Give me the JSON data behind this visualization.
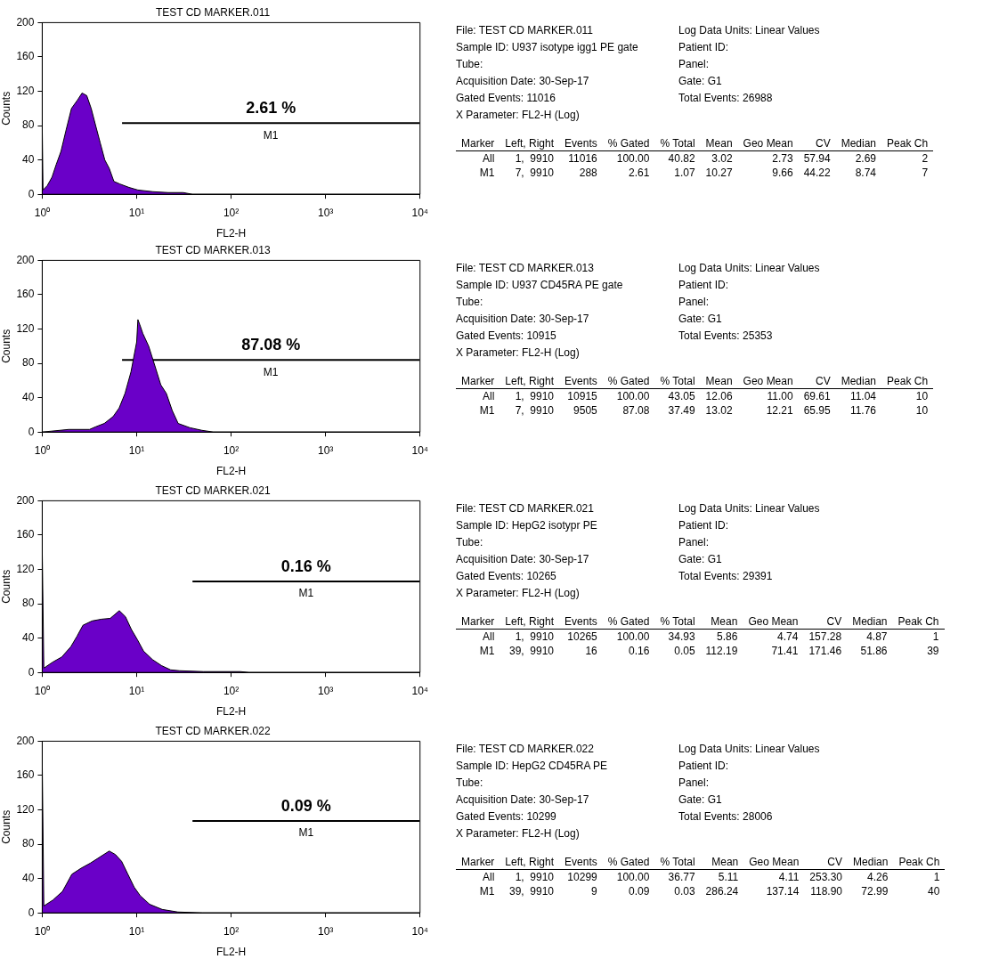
{
  "chart_data": [
    {
      "type": "area",
      "title": "TEST CD MARKER.011",
      "xlabel": "FL2-H",
      "ylabel": "Counts",
      "log": "x",
      "xlim": [
        1,
        10000
      ],
      "xticks": [
        {
          "value": 1,
          "label": "10⁰"
        },
        {
          "value": 10,
          "label": "10¹"
        },
        {
          "value": 100,
          "label": "10²"
        },
        {
          "value": 1000,
          "label": "10³"
        },
        {
          "value": 10000,
          "label": "10⁴"
        }
      ],
      "ylim": [
        0,
        200
      ],
      "yticks": [
        0,
        40,
        80,
        120,
        160,
        200
      ],
      "series": [
        {
          "type": "area",
          "color": "#6a00c8",
          "x": [
            1,
            1.02,
            1.13,
            1.27,
            1.41,
            1.58,
            1.79,
            2.04,
            2.37,
            2.64,
            2.96,
            3.3,
            3.68,
            4.11,
            4.6,
            5.13,
            5.74,
            6.64,
            8.3,
            10.3,
            14.9,
            21.6,
            31,
            39,
            10000
          ],
          "values": [
            80,
            5,
            10,
            20,
            35,
            50,
            75,
            100,
            110,
            118,
            115,
            100,
            80,
            60,
            40,
            30,
            15,
            12,
            8,
            5,
            3,
            2,
            2,
            0,
            0
          ]
        },
        {
          "type": "line",
          "name": "M1",
          "color": "#000000",
          "x": [
            7,
            9910
          ],
          "values": [
            83,
            83
          ]
        }
      ],
      "annotations": [
        "2.61 %"
      ]
    },
    {
      "type": "other",
      "annotations": [
        "File: TEST CD MARKER.011",
        "Sample ID: U937 isotype igg1 PE gate",
        "Tube:",
        "Acquisition Date: 30-Sep-17",
        "Gated Events: 11016",
        "X Parameter: FL2-H (Log)",
        "Log Data Units: Linear Values",
        "Patient ID:",
        "Panel:",
        "Gate: G1",
        "Total Events: 26988"
      ],
      "categories": [
        "Marker",
        "Left, Right",
        "Events",
        "% Gated",
        "% Total",
        "Mean",
        "Geo Mean",
        "CV",
        "Median",
        "Peak Ch"
      ],
      "cell_labels": [
        [
          "All",
          "1,  9910",
          "11016",
          "100.00",
          "40.82",
          "3.02",
          "2.73",
          "57.94",
          "2.69",
          "2"
        ],
        [
          "M1",
          "7,  9910",
          "288",
          "2.61",
          "1.07",
          "10.27",
          "9.66",
          "44.22",
          "8.74",
          "7"
        ]
      ]
    },
    {
      "type": "area",
      "title": "TEST CD MARKER.013",
      "xlabel": "FL2-H",
      "ylabel": "Counts",
      "log": "x",
      "xlim": [
        1,
        10000
      ],
      "xticks": [
        {
          "value": 1,
          "label": "10⁰"
        },
        {
          "value": 10,
          "label": "10¹"
        },
        {
          "value": 100,
          "label": "10²"
        },
        {
          "value": 1000,
          "label": "10³"
        },
        {
          "value": 10000,
          "label": "10⁴"
        }
      ],
      "ylim": [
        0,
        200
      ],
      "yticks": [
        0,
        40,
        80,
        120,
        160,
        200
      ],
      "series": [
        {
          "type": "area",
          "color": "#6a00c8",
          "x": [
            1,
            1.24,
            1.91,
            3.17,
            3.66,
            4.54,
            5.63,
            6.52,
            7.53,
            8.7,
            10,
            10.3,
            10.8,
            11.6,
            13.4,
            15.5,
            18,
            20.6,
            23.8,
            27.5,
            36.7,
            49,
            65,
            10000
          ],
          "values": [
            0,
            1,
            3,
            3,
            6,
            10,
            18,
            28,
            45,
            70,
            105,
            131,
            125,
            115,
            100,
            78,
            55,
            45,
            25,
            10,
            5,
            2,
            0,
            0
          ]
        },
        {
          "type": "line",
          "name": "M1",
          "color": "#000000",
          "x": [
            7,
            9910
          ],
          "values": [
            84,
            84
          ]
        }
      ],
      "annotations": [
        "87.08 %"
      ]
    },
    {
      "type": "other",
      "annotations": [
        "File: TEST CD MARKER.013",
        "Sample ID: U937 CD45RA PE gate",
        "Tube:",
        "Acquisition Date: 30-Sep-17",
        "Gated Events: 10915",
        "X Parameter: FL2-H (Log)",
        "Log Data Units: Linear Values",
        "Patient ID:",
        "Panel:",
        "Gate: G1",
        "Total Events: 25353"
      ],
      "categories": [
        "Marker",
        "Left, Right",
        "Events",
        "% Gated",
        "% Total",
        "Mean",
        "Geo Mean",
        "CV",
        "Median",
        "Peak Ch"
      ],
      "cell_labels": [
        [
          "All",
          "1,  9910",
          "10915",
          "100.00",
          "43.05",
          "12.06",
          "11.00",
          "69.61",
          "11.04",
          "10"
        ],
        [
          "M1",
          "7,  9910",
          "9505",
          "87.08",
          "37.49",
          "13.02",
          "12.21",
          "65.95",
          "11.76",
          "10"
        ]
      ]
    },
    {
      "type": "area",
      "title": "TEST CD MARKER.021",
      "xlabel": "FL2-H",
      "ylabel": "Counts",
      "log": "x",
      "xlim": [
        1,
        10000
      ],
      "xticks": [
        {
          "value": 1,
          "label": "10⁰"
        },
        {
          "value": 10,
          "label": "10¹"
        },
        {
          "value": 100,
          "label": "10²"
        },
        {
          "value": 1000,
          "label": "10³"
        },
        {
          "value": 10000,
          "label": "10⁴"
        }
      ],
      "ylim": [
        0,
        200
      ],
      "yticks": [
        0,
        40,
        80,
        120,
        160,
        200
      ],
      "series": [
        {
          "type": "area",
          "color": "#6a00c8",
          "x": [
            1,
            1.04,
            1.29,
            1.61,
            2.01,
            2.33,
            2.7,
            3.37,
            4.21,
            5.25,
            6.55,
            7.6,
            8.8,
            10.2,
            11.8,
            14.7,
            18.3,
            22.9,
            28.5,
            51,
            125,
            155,
            10000
          ],
          "values": [
            145,
            5,
            12,
            18,
            30,
            42,
            55,
            60,
            62,
            63,
            72,
            65,
            50,
            38,
            25,
            15,
            8,
            3,
            2,
            1,
            1,
            0,
            0
          ]
        },
        {
          "type": "line",
          "name": "M1",
          "color": "#000000",
          "x": [
            39,
            9910
          ],
          "values": [
            106,
            106
          ]
        }
      ],
      "annotations": [
        "0.16 %"
      ]
    },
    {
      "type": "other",
      "annotations": [
        "File: TEST CD MARKER.021",
        "Sample ID: HepG2 isotypr PE",
        "Tube:",
        "Acquisition Date: 30-Sep-17",
        "Gated Events: 10265",
        "X Parameter: FL2-H (Log)",
        "Log Data Units: Linear Values",
        "Patient ID:",
        "Panel:",
        "Gate: G1",
        "Total Events: 29391"
      ],
      "categories": [
        "Marker",
        "Left, Right",
        "Events",
        "% Gated",
        "% Total",
        "Mean",
        "Geo Mean",
        "CV",
        "Median",
        "Peak Ch"
      ],
      "cell_labels": [
        [
          "All",
          "1,  9910",
          "10265",
          "100.00",
          "34.93",
          "5.86",
          "4.74",
          "157.28",
          "4.87",
          "1"
        ],
        [
          "M1",
          "39,  9910",
          "16",
          "0.16",
          "0.05",
          "112.19",
          "71.41",
          "171.46",
          "51.86",
          "39"
        ]
      ]
    },
    {
      "type": "area",
      "title": "TEST CD MARKER.022",
      "xlabel": "FL2-H",
      "ylabel": "Counts",
      "log": "x",
      "xlim": [
        1,
        10000
      ],
      "xticks": [
        {
          "value": 1,
          "label": "10⁰"
        },
        {
          "value": 10,
          "label": "10¹"
        },
        {
          "value": 100,
          "label": "10²"
        },
        {
          "value": 1000,
          "label": "10³"
        },
        {
          "value": 10000,
          "label": "10⁴"
        }
      ],
      "ylim": [
        0,
        200
      ],
      "yticks": [
        0,
        40,
        80,
        120,
        160,
        200
      ],
      "series": [
        {
          "type": "area",
          "color": "#6a00c8",
          "x": [
            1,
            1.04,
            1.3,
            1.64,
            2.06,
            2.58,
            3.24,
            4.07,
            5.12,
            5.95,
            6.93,
            8.07,
            9.4,
            10.9,
            13.7,
            18.6,
            27.3,
            49.9,
            10000
          ],
          "values": [
            178,
            8,
            15,
            25,
            45,
            52,
            58,
            65,
            72,
            68,
            60,
            45,
            30,
            20,
            10,
            4,
            1,
            0,
            0
          ]
        },
        {
          "type": "line",
          "name": "M1",
          "color": "#000000",
          "x": [
            39,
            9910
          ],
          "values": [
            107,
            107
          ]
        }
      ],
      "annotations": [
        "0.09 %"
      ]
    },
    {
      "type": "other",
      "annotations": [
        "File: TEST CD MARKER.022",
        "Sample ID: HepG2 CD45RA PE",
        "Tube:",
        "Acquisition Date: 30-Sep-17",
        "Gated Events: 10299",
        "X Parameter: FL2-H (Log)",
        "Log Data Units: Linear Values",
        "Patient ID:",
        "Panel:",
        "Gate: G1",
        "Total Events: 28006"
      ],
      "categories": [
        "Marker",
        "Left, Right",
        "Events",
        "% Gated",
        "% Total",
        "Mean",
        "Geo Mean",
        "CV",
        "Median",
        "Peak Ch"
      ],
      "cell_labels": [
        [
          "All",
          "1,  9910",
          "10299",
          "100.00",
          "36.77",
          "5.11",
          "4.11",
          "253.30",
          "4.26",
          "1"
        ],
        [
          "M1",
          "39,  9910",
          "9",
          "0.09",
          "0.03",
          "286.24",
          "137.14",
          "118.90",
          "72.99",
          "40"
        ]
      ]
    }
  ]
}
